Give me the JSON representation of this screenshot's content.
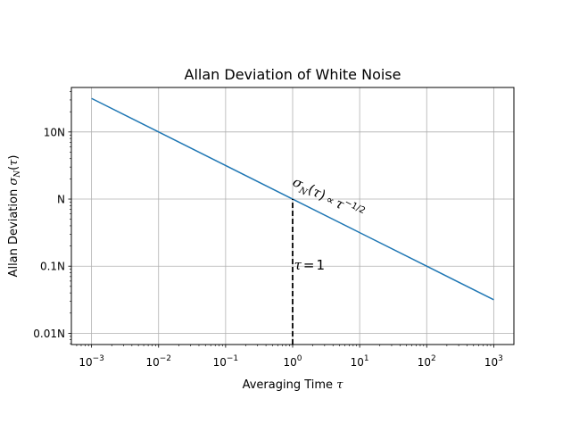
{
  "chart_data": {
    "type": "line",
    "title": "Allan Deviation of White Noise",
    "xlabel": "Averaging Time τ",
    "ylabel": "Allan Deviation σN(τ)",
    "xscale": "log",
    "yscale": "log",
    "xlim": [
      0.0005,
      2000
    ],
    "ylim": [
      0.0068,
      46
    ],
    "grid": true,
    "x_ticks": [
      {
        "value": 0.001,
        "base": "10",
        "exp": "−3"
      },
      {
        "value": 0.01,
        "base": "10",
        "exp": "−2"
      },
      {
        "value": 0.1,
        "base": "10",
        "exp": "−1"
      },
      {
        "value": 1,
        "base": "10",
        "exp": "0"
      },
      {
        "value": 10,
        "base": "10",
        "exp": "1"
      },
      {
        "value": 100,
        "base": "10",
        "exp": "2"
      },
      {
        "value": 1000,
        "base": "10",
        "exp": "3"
      }
    ],
    "y_ticks": [
      {
        "value": 0.01,
        "label": "0.01N"
      },
      {
        "value": 0.1,
        "label": "0.1N"
      },
      {
        "value": 1,
        "label": "N"
      },
      {
        "value": 10,
        "label": "10N"
      }
    ],
    "series": [
      {
        "x": [
          0.001,
          0.01,
          0.1,
          1,
          10,
          100,
          1000
        ],
        "y": [
          31.62,
          10,
          3.162,
          1,
          0.3162,
          0.1,
          0.03162
        ],
        "color": "#1f77b4"
      }
    ],
    "marker_line": {
      "x": 1,
      "y_from": 0.0068,
      "y_to": 1,
      "style": "dashed",
      "color": "#000000"
    },
    "annotations": [
      {
        "text": "σN(τ) ∝ τ−1/2",
        "x": 1,
        "y": 1
      },
      {
        "text": "τ = 1",
        "x": 1.05,
        "y": 0.11
      }
    ]
  }
}
